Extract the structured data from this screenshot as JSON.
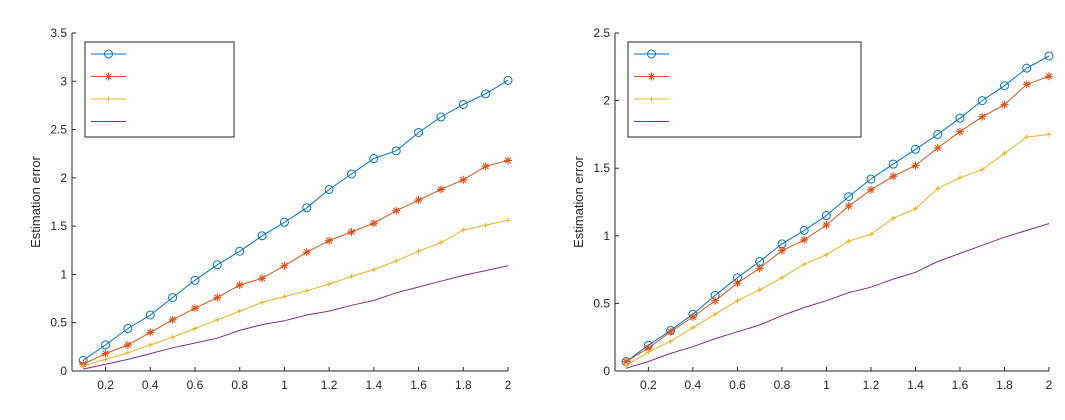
{
  "chart_data": [
    {
      "type": "line",
      "title": "",
      "xlabel": "",
      "ylabel": "Estimation error",
      "xlim": [
        0.05,
        2.0
      ],
      "ylim": [
        0,
        3.5
      ],
      "xticks": [
        0.2,
        0.4,
        0.6,
        0.8,
        1,
        1.2,
        1.4,
        1.6,
        1.8,
        2
      ],
      "xtick_labels": [
        "0.2",
        "0.4",
        "0.6",
        "0.8",
        "1",
        "1.2",
        "1.4",
        "1.6",
        "1.8",
        "2"
      ],
      "yticks": [
        0,
        0.5,
        1,
        1.5,
        2,
        2.5,
        3,
        3.5
      ],
      "ytick_labels": [
        "0",
        "0.5",
        "1",
        "1.5",
        "2",
        "2.5",
        "3",
        "3.5"
      ],
      "legend": {
        "position": "top-left",
        "entries": [
          "",
          "",
          "",
          ""
        ]
      },
      "x": [
        0.1,
        0.2,
        0.3,
        0.4,
        0.5,
        0.6,
        0.7,
        0.8,
        0.9,
        1.0,
        1.1,
        1.2,
        1.3,
        1.4,
        1.5,
        1.6,
        1.7,
        1.8,
        1.9,
        2.0
      ],
      "series": [
        {
          "name": "",
          "color": "#0072BD",
          "marker": "circle",
          "values": [
            0.11,
            0.27,
            0.44,
            0.58,
            0.76,
            0.94,
            1.1,
            1.24,
            1.4,
            1.54,
            1.69,
            1.88,
            2.04,
            2.2,
            2.28,
            2.47,
            2.63,
            2.76,
            2.87,
            3.01
          ]
        },
        {
          "name": "",
          "color": "#D95319",
          "marker": "asterisk",
          "values": [
            0.07,
            0.18,
            0.27,
            0.4,
            0.53,
            0.65,
            0.76,
            0.89,
            0.96,
            1.09,
            1.23,
            1.35,
            1.44,
            1.53,
            1.66,
            1.77,
            1.88,
            1.98,
            2.12,
            2.18
          ]
        },
        {
          "name": "",
          "color": "#EDB120",
          "marker": "point",
          "values": [
            0.05,
            0.12,
            0.19,
            0.27,
            0.35,
            0.44,
            0.53,
            0.62,
            0.71,
            0.77,
            0.83,
            0.9,
            0.98,
            1.05,
            1.14,
            1.24,
            1.33,
            1.46,
            1.51,
            1.56
          ]
        },
        {
          "name": "",
          "color": "#7E2F8E",
          "marker": "none",
          "values": [
            0.02,
            0.07,
            0.12,
            0.18,
            0.24,
            0.29,
            0.34,
            0.42,
            0.48,
            0.52,
            0.58,
            0.62,
            0.68,
            0.73,
            0.81,
            0.87,
            0.93,
            0.99,
            1.04,
            1.09
          ]
        }
      ]
    },
    {
      "type": "line",
      "title": "",
      "xlabel": "",
      "ylabel": "Estimation error",
      "xlim": [
        0.05,
        2.0
      ],
      "ylim": [
        0,
        2.5
      ],
      "xticks": [
        0.2,
        0.4,
        0.6,
        0.8,
        1,
        1.2,
        1.4,
        1.6,
        1.8,
        2
      ],
      "xtick_labels": [
        "0.2",
        "0.4",
        "0.6",
        "0.8",
        "1",
        "1.2",
        "1.4",
        "1.6",
        "1.8",
        "2"
      ],
      "yticks": [
        0,
        0.5,
        1,
        1.5,
        2,
        2.5
      ],
      "ytick_labels": [
        "0",
        "0.5",
        "1",
        "1.5",
        "2",
        "2.5"
      ],
      "legend": {
        "position": "top-left",
        "entries": [
          "",
          "",
          "",
          ""
        ]
      },
      "x": [
        0.1,
        0.2,
        0.3,
        0.4,
        0.5,
        0.6,
        0.7,
        0.8,
        0.9,
        1.0,
        1.1,
        1.2,
        1.3,
        1.4,
        1.5,
        1.6,
        1.7,
        1.8,
        1.9,
        2.0
      ],
      "series": [
        {
          "name": "",
          "color": "#0072BD",
          "marker": "circle",
          "values": [
            0.07,
            0.19,
            0.3,
            0.42,
            0.56,
            0.69,
            0.81,
            0.94,
            1.04,
            1.15,
            1.29,
            1.42,
            1.53,
            1.64,
            1.75,
            1.87,
            2.0,
            2.11,
            2.24,
            2.33
          ]
        },
        {
          "name": "",
          "color": "#D95319",
          "marker": "asterisk",
          "values": [
            0.07,
            0.17,
            0.29,
            0.4,
            0.52,
            0.65,
            0.76,
            0.89,
            0.97,
            1.08,
            1.22,
            1.34,
            1.44,
            1.52,
            1.65,
            1.77,
            1.88,
            1.97,
            2.12,
            2.18
          ]
        },
        {
          "name": "",
          "color": "#EDB120",
          "marker": "point",
          "values": [
            0.04,
            0.14,
            0.22,
            0.32,
            0.42,
            0.52,
            0.6,
            0.69,
            0.79,
            0.86,
            0.96,
            1.01,
            1.13,
            1.2,
            1.35,
            1.43,
            1.49,
            1.61,
            1.73,
            1.75
          ]
        },
        {
          "name": "",
          "color": "#7E2F8E",
          "marker": "none",
          "values": [
            0.02,
            0.07,
            0.13,
            0.18,
            0.24,
            0.29,
            0.34,
            0.41,
            0.47,
            0.52,
            0.58,
            0.62,
            0.68,
            0.73,
            0.81,
            0.87,
            0.93,
            0.99,
            1.04,
            1.09
          ]
        }
      ]
    }
  ]
}
